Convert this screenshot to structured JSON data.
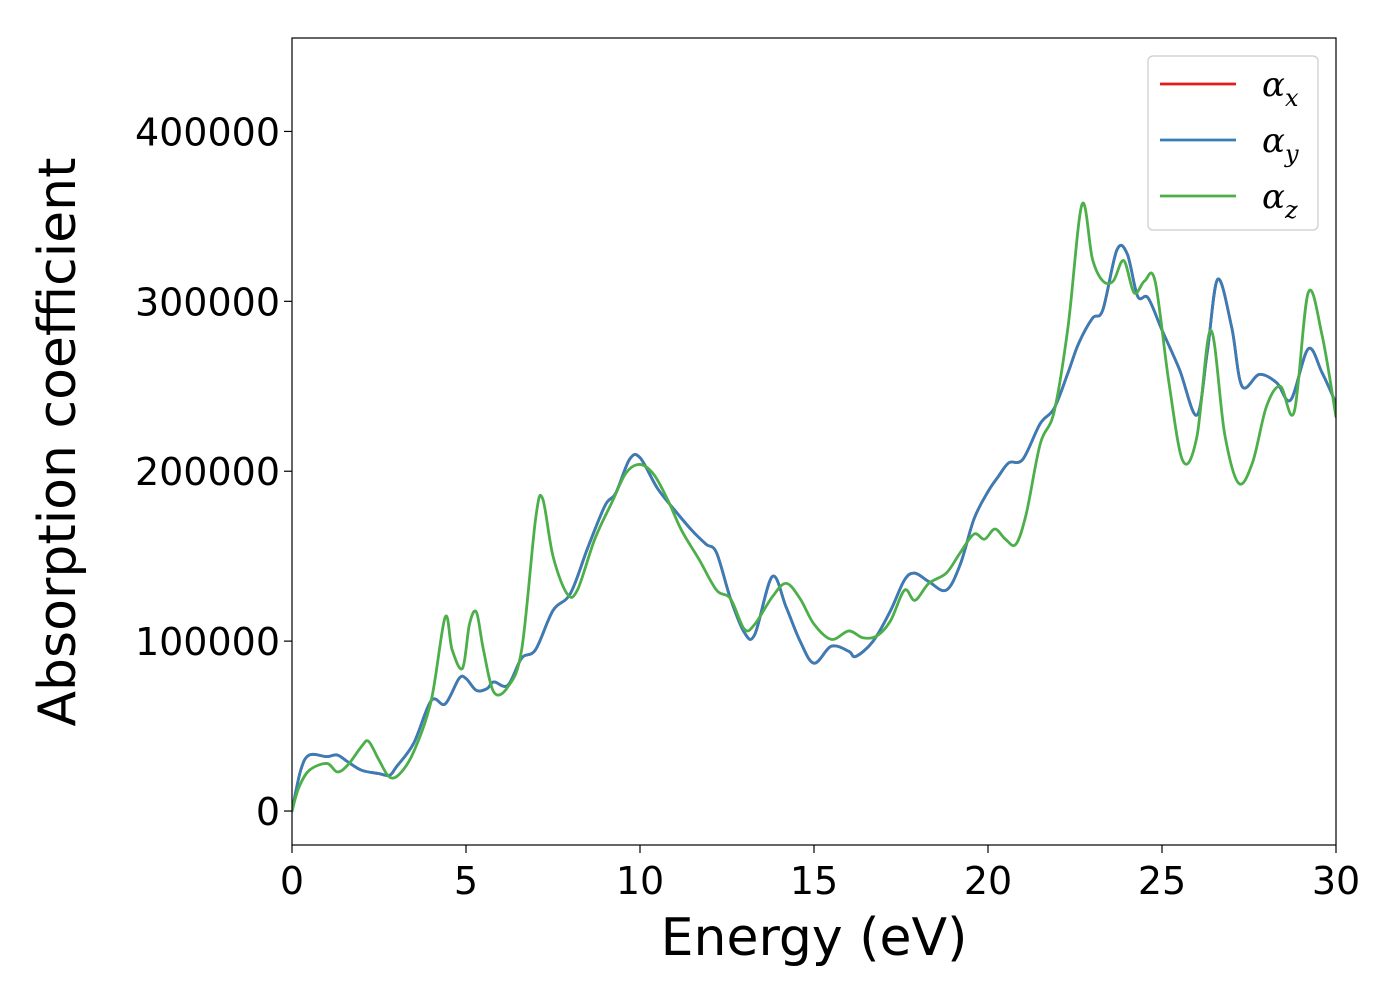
{
  "chart_data": {
    "type": "line",
    "xlabel": "Energy (eV)",
    "ylabel": "Absorption coefficient",
    "xlim": [
      0,
      30
    ],
    "ylim": [
      -20000,
      455000
    ],
    "xticks": [
      0,
      5,
      10,
      15,
      20,
      25,
      30
    ],
    "yticks": [
      0,
      100000,
      200000,
      300000,
      400000
    ],
    "xtick_labels": [
      "0",
      "5",
      "10",
      "15",
      "20",
      "25",
      "30"
    ],
    "ytick_labels": [
      "0",
      "100000",
      "200000",
      "300000",
      "400000"
    ],
    "grid": false,
    "legend_position": "top-right",
    "series": [
      {
        "name": "α_x",
        "legend_symbol": "α",
        "legend_sub": "x",
        "color": "#e41a1c",
        "x": [
          0,
          0.25,
          0.5,
          1.0,
          1.3,
          1.6,
          2.0,
          2.5,
          2.8,
          3.0,
          3.5,
          4.0,
          4.4,
          4.8,
          5.0,
          5.3,
          5.6,
          5.8,
          6.2,
          6.6,
          7.0,
          7.5,
          8.0,
          8.5,
          9.0,
          9.3,
          9.7,
          10.0,
          10.5,
          11.0,
          11.5,
          11.9,
          12.2,
          12.6,
          13.0,
          13.3,
          13.8,
          14.2,
          14.6,
          15.0,
          15.5,
          16.0,
          16.2,
          16.7,
          17.2,
          17.6,
          17.9,
          18.3,
          18.8,
          19.2,
          19.6,
          20.0,
          20.3,
          20.6,
          21.0,
          21.5,
          21.9,
          22.3,
          22.6,
          23.0,
          23.3,
          23.7,
          24.0,
          24.3,
          24.6,
          25.0,
          25.5,
          26.0,
          26.3,
          26.6,
          27.0,
          27.3,
          27.8,
          28.3,
          28.7,
          29.2,
          29.6,
          30.0
        ],
        "y": [
          0,
          24000,
          33000,
          32000,
          33000,
          29000,
          24000,
          22000,
          21000,
          26000,
          40000,
          65000,
          63000,
          78000,
          78000,
          71000,
          72000,
          76000,
          74000,
          90000,
          95000,
          118000,
          128000,
          155000,
          180000,
          187000,
          207000,
          208000,
          190000,
          177000,
          165000,
          157000,
          152000,
          125000,
          105000,
          104000,
          138000,
          120000,
          100000,
          87000,
          97000,
          94000,
          91000,
          100000,
          118000,
          136000,
          140000,
          135000,
          130000,
          145000,
          172000,
          188000,
          197000,
          205000,
          207000,
          228000,
          237000,
          258000,
          275000,
          290000,
          295000,
          330000,
          328000,
          303000,
          302000,
          283000,
          260000,
          233000,
          270000,
          313000,
          285000,
          250000,
          257000,
          252000,
          242000,
          272000,
          258000,
          240000
        ]
      },
      {
        "name": "α_y",
        "legend_symbol": "α",
        "legend_sub": "y",
        "color": "#377eb8",
        "x": [
          0,
          0.25,
          0.5,
          1.0,
          1.3,
          1.6,
          2.0,
          2.5,
          2.8,
          3.0,
          3.5,
          4.0,
          4.4,
          4.8,
          5.0,
          5.3,
          5.6,
          5.8,
          6.2,
          6.6,
          7.0,
          7.5,
          8.0,
          8.5,
          9.0,
          9.3,
          9.7,
          10.0,
          10.5,
          11.0,
          11.5,
          11.9,
          12.2,
          12.6,
          13.0,
          13.3,
          13.8,
          14.2,
          14.6,
          15.0,
          15.5,
          16.0,
          16.2,
          16.7,
          17.2,
          17.6,
          17.9,
          18.3,
          18.8,
          19.2,
          19.6,
          20.0,
          20.3,
          20.6,
          21.0,
          21.5,
          21.9,
          22.3,
          22.6,
          23.0,
          23.3,
          23.7,
          24.0,
          24.3,
          24.6,
          25.0,
          25.5,
          26.0,
          26.3,
          26.6,
          27.0,
          27.3,
          27.8,
          28.3,
          28.7,
          29.2,
          29.6,
          30.0
        ],
        "y": [
          0,
          24000,
          33000,
          32000,
          33000,
          29000,
          24000,
          22000,
          21000,
          26000,
          40000,
          65000,
          63000,
          78000,
          78000,
          71000,
          72000,
          76000,
          74000,
          90000,
          95000,
          118000,
          128000,
          155000,
          180000,
          187000,
          207000,
          208000,
          190000,
          177000,
          165000,
          157000,
          152000,
          125000,
          105000,
          104000,
          138000,
          120000,
          100000,
          87000,
          97000,
          94000,
          91000,
          100000,
          118000,
          136000,
          140000,
          135000,
          130000,
          145000,
          172000,
          188000,
          197000,
          205000,
          207000,
          228000,
          237000,
          258000,
          275000,
          290000,
          295000,
          330000,
          328000,
          303000,
          302000,
          283000,
          260000,
          233000,
          270000,
          313000,
          285000,
          250000,
          257000,
          252000,
          242000,
          272000,
          258000,
          240000
        ]
      },
      {
        "name": "α_z",
        "legend_symbol": "α",
        "legend_sub": "z",
        "color": "#4daf4a",
        "x": [
          0,
          0.2,
          0.5,
          1.0,
          1.3,
          1.6,
          2.0,
          2.2,
          2.5,
          2.8,
          3.1,
          3.5,
          4.0,
          4.4,
          4.6,
          4.9,
          5.1,
          5.3,
          5.5,
          5.8,
          6.2,
          6.6,
          7.0,
          7.2,
          7.5,
          7.9,
          8.2,
          8.7,
          9.2,
          9.6,
          10.0,
          10.4,
          10.8,
          11.2,
          11.7,
          12.2,
          12.6,
          13.0,
          13.3,
          13.8,
          14.2,
          14.6,
          15.0,
          15.5,
          16.0,
          16.4,
          16.8,
          17.2,
          17.6,
          17.9,
          18.3,
          18.8,
          19.2,
          19.6,
          19.9,
          20.2,
          20.5,
          20.8,
          21.1,
          21.5,
          21.9,
          22.3,
          22.7,
          23.0,
          23.3,
          23.6,
          23.9,
          24.2,
          24.5,
          24.8,
          25.2,
          25.6,
          26.0,
          26.4,
          26.8,
          27.2,
          27.6,
          28.0,
          28.4,
          28.8,
          29.2,
          29.6,
          30.0
        ],
        "y": [
          0,
          14000,
          24000,
          28000,
          23000,
          27000,
          38000,
          41000,
          30000,
          20000,
          22000,
          35000,
          65000,
          114000,
          95000,
          84000,
          110000,
          117000,
          95000,
          70000,
          73000,
          95000,
          172000,
          184000,
          150000,
          128000,
          130000,
          160000,
          182000,
          199000,
          204000,
          198000,
          183000,
          165000,
          148000,
          130000,
          125000,
          107000,
          110000,
          126000,
          134000,
          125000,
          110000,
          101000,
          106000,
          102000,
          103000,
          112000,
          130000,
          124000,
          134000,
          140000,
          152000,
          163000,
          160000,
          166000,
          160000,
          157000,
          175000,
          216000,
          235000,
          285000,
          357000,
          325000,
          312000,
          312000,
          324000,
          305000,
          312000,
          312000,
          252000,
          206000,
          220000,
          283000,
          222000,
          193000,
          205000,
          238000,
          250000,
          235000,
          305000,
          280000,
          232000
        ]
      }
    ]
  }
}
